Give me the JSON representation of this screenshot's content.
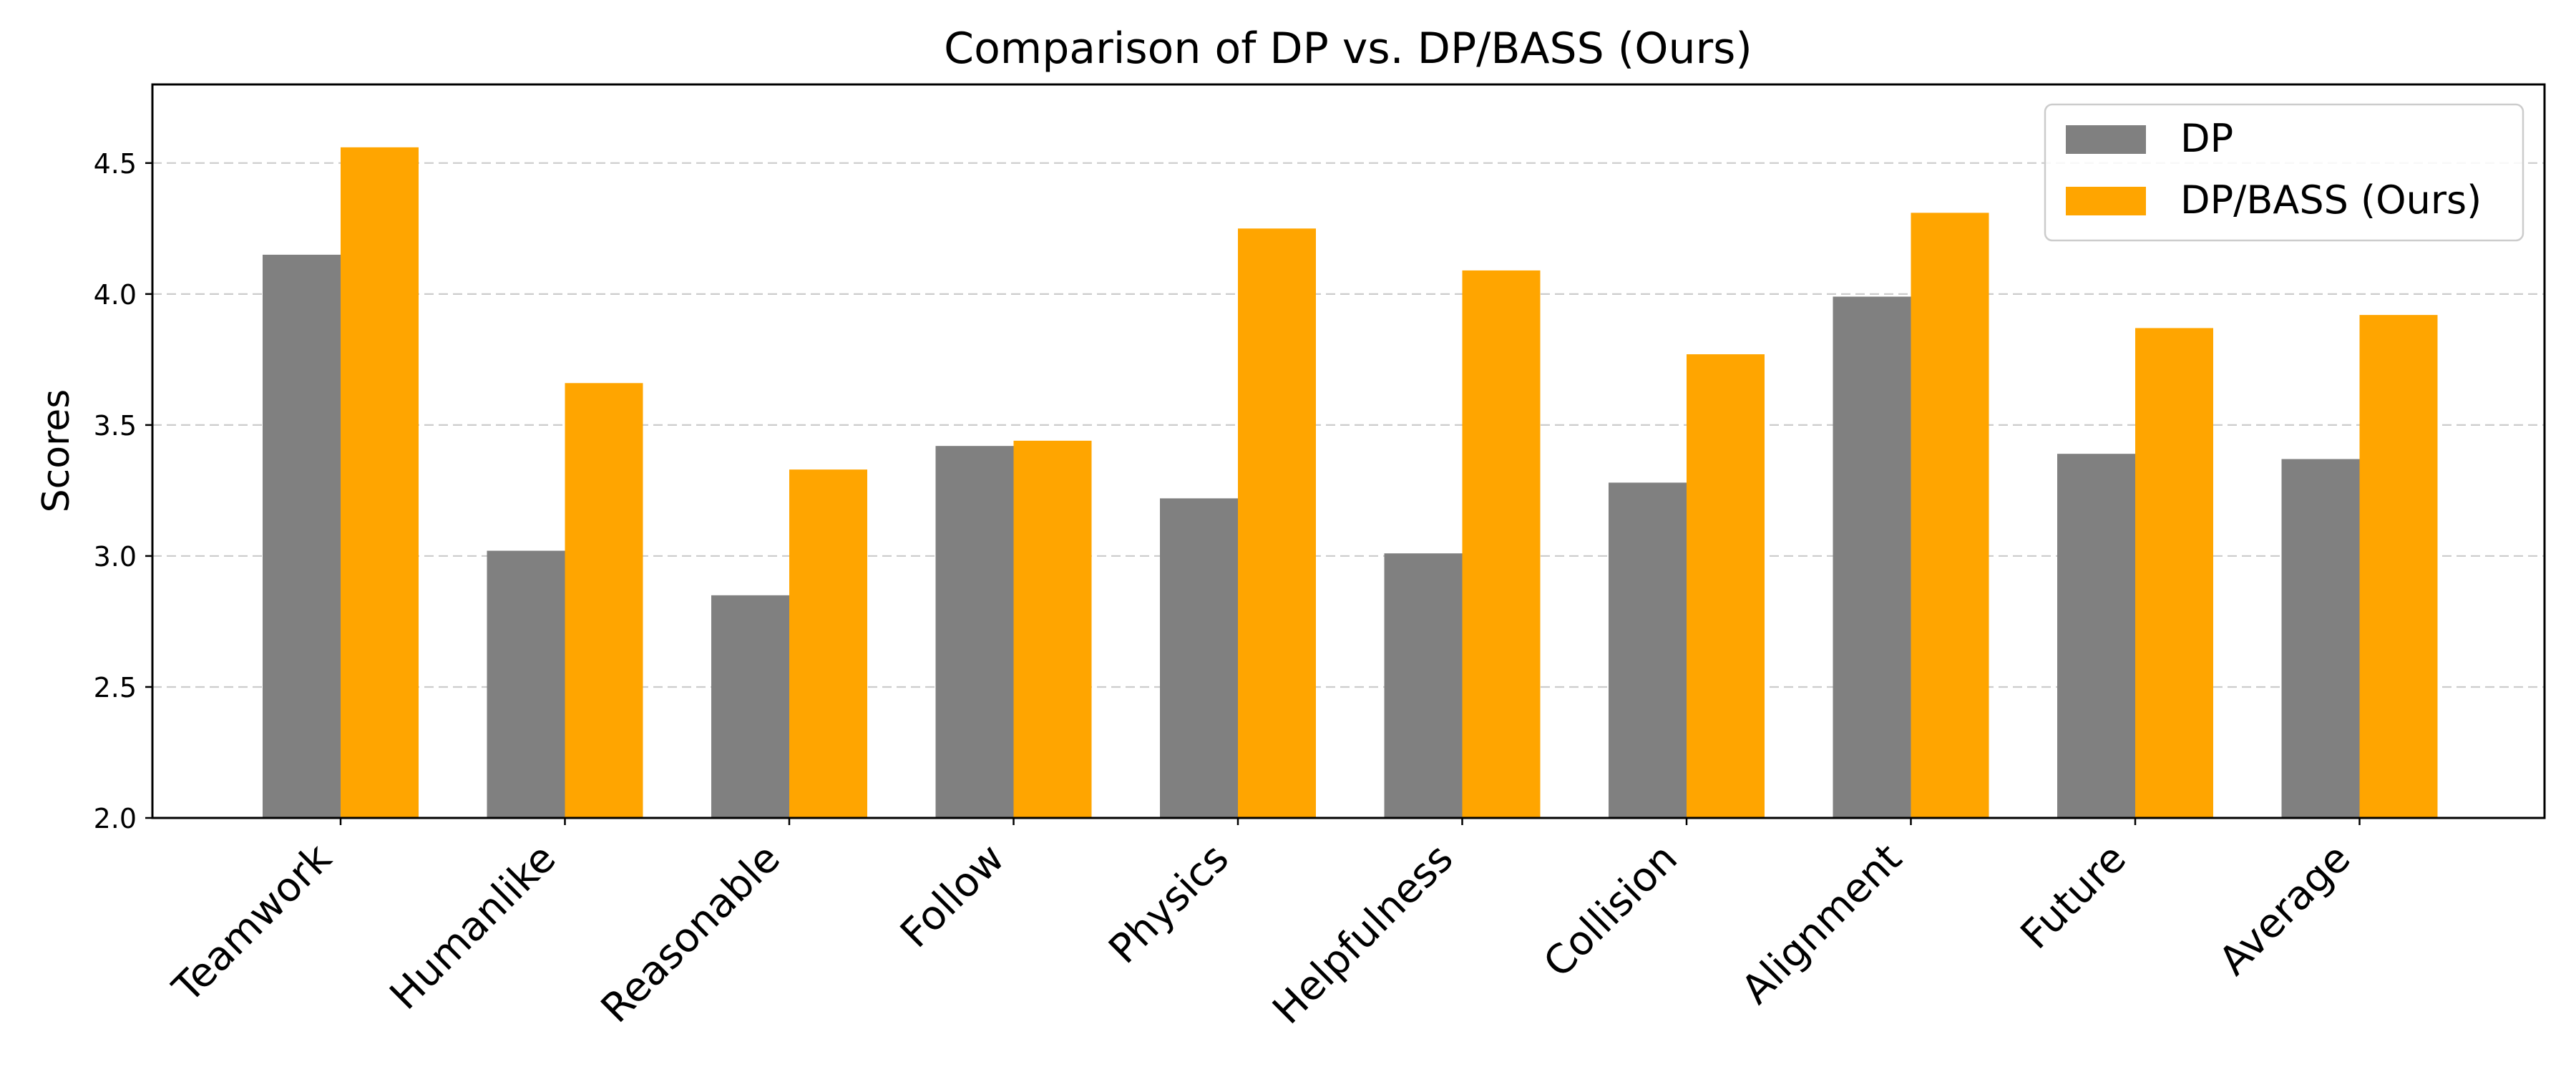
{
  "chart_data": {
    "type": "bar",
    "title": "Comparison of DP vs. DP/BASS (Ours)",
    "xlabel": "",
    "ylabel": "Scores",
    "ylim": [
      2.0,
      4.8
    ],
    "yticks": [
      "2.0",
      "2.5",
      "3.0",
      "3.5",
      "4.0",
      "4.5"
    ],
    "categories": [
      "Teamwork",
      "Humanlike",
      "Reasonable",
      "Follow",
      "Physics",
      "Helpfulness",
      "Collision",
      "Alignment",
      "Future",
      "Average"
    ],
    "series": [
      {
        "name": "DP",
        "color": "#808080",
        "values": [
          4.15,
          3.02,
          2.85,
          3.42,
          3.22,
          3.01,
          3.28,
          3.99,
          3.39,
          3.37
        ]
      },
      {
        "name": "DP/BASS (Ours)",
        "color": "#ffa500",
        "values": [
          4.56,
          3.66,
          3.33,
          3.44,
          4.25,
          4.09,
          3.77,
          4.31,
          3.87,
          3.92
        ]
      }
    ],
    "grid": "y dashed",
    "legend_position": "top-right"
  }
}
